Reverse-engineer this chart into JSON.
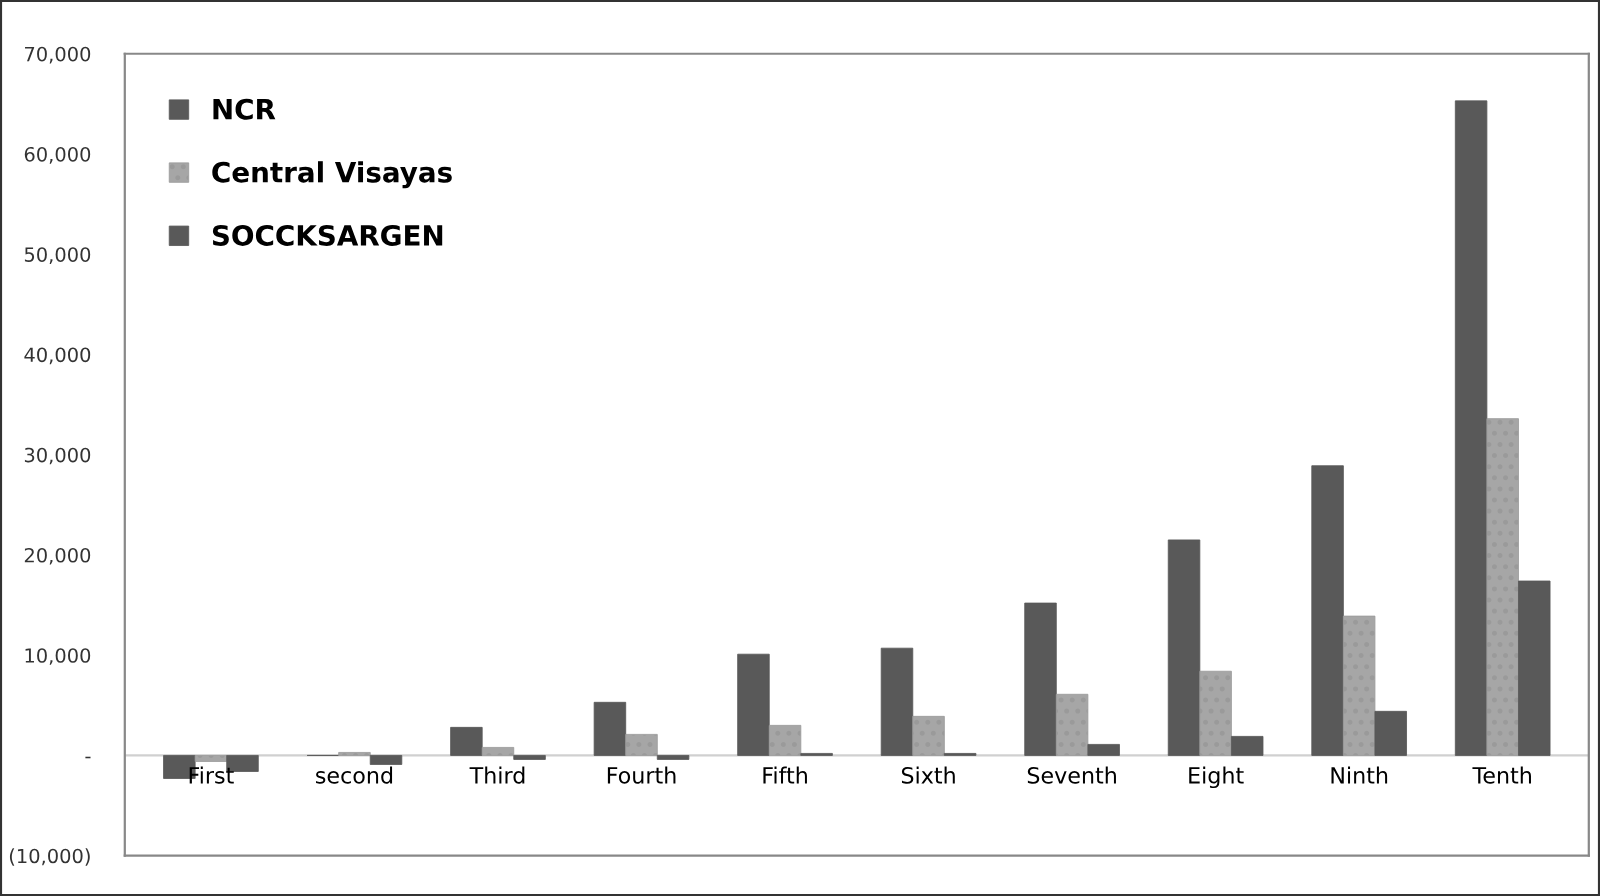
{
  "chart_data": {
    "type": "bar",
    "categories": [
      "First",
      "second",
      "Third",
      "Fourth",
      "Fifth",
      "Sixth",
      "Seventh",
      "Eight",
      "Ninth",
      "Tenth"
    ],
    "series": [
      {
        "name": "NCR",
        "color": "#595959",
        "values": [
          -2300,
          0,
          2800,
          5300,
          10100,
          10700,
          15200,
          21500,
          28900,
          65300
        ]
      },
      {
        "name": "Central Visayas",
        "color": "#a6a6a6",
        "values": [
          -600,
          300,
          800,
          2100,
          3000,
          3900,
          6100,
          8400,
          13900,
          33600
        ]
      },
      {
        "name": "SOCCKSARGEN",
        "color": "#595959",
        "values": [
          -1600,
          -900,
          -400,
          -400,
          200,
          200,
          1100,
          1900,
          4400,
          17400
        ]
      }
    ],
    "ylim": [
      -10000,
      70000
    ],
    "yticks": [
      {
        "value": -10000,
        "label": "(10,000)"
      },
      {
        "value": 0,
        "label": "-"
      },
      {
        "value": 10000,
        "label": "10,000"
      },
      {
        "value": 20000,
        "label": "20,000"
      },
      {
        "value": 30000,
        "label": "30,000"
      },
      {
        "value": 40000,
        "label": "40,000"
      },
      {
        "value": 50000,
        "label": "50,000"
      },
      {
        "value": 60000,
        "label": "60,000"
      },
      {
        "value": 70000,
        "label": "70,000"
      }
    ],
    "grid": false,
    "legend": "top left"
  }
}
